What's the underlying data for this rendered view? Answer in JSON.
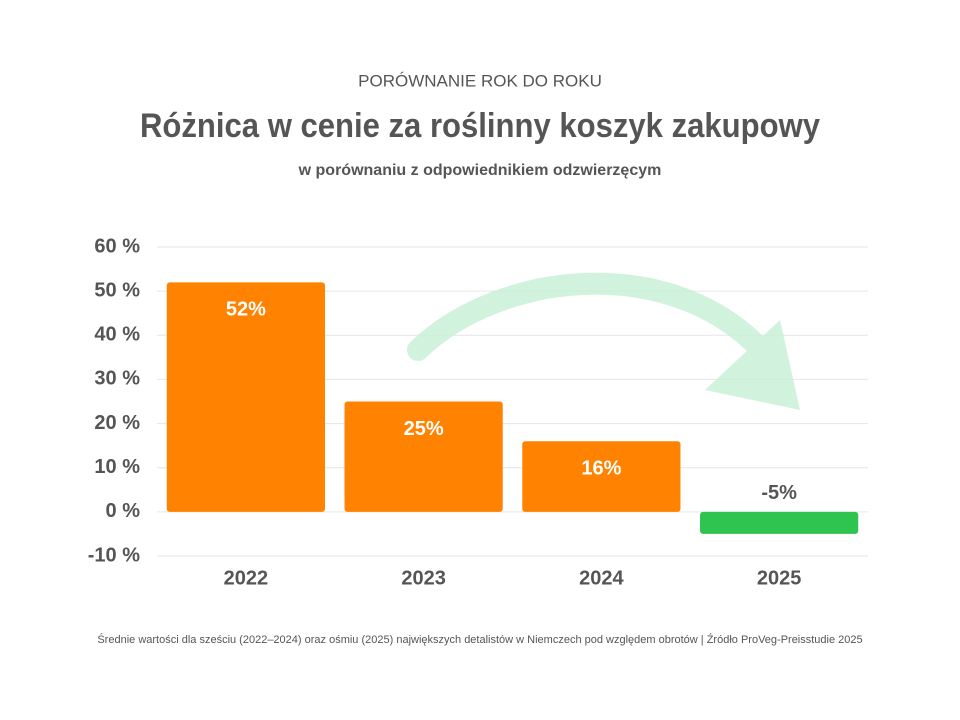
{
  "chart_data": {
    "type": "bar",
    "kicker": "PORÓWNANIE ROK DO ROKU",
    "title": "Różnica w cenie za roślinny koszyk zakupowy",
    "subtitle": "w porównaniu z odpowiednikiem odzwierzęcym",
    "note": "Średnie wartości dla sześciu (2022–2024) oraz ośmiu (2025) największych detalistów w Niemczech pod względem obrotów | Źródło ProVeg-Preisstudie 2025",
    "categories": [
      "2022",
      "2023",
      "2024",
      "2025"
    ],
    "values": [
      52,
      25,
      16,
      -5
    ],
    "value_labels": [
      "52%",
      "25%",
      "16%",
      "-5%"
    ],
    "colors": [
      "#ff8200",
      "#ff8200",
      "#ff8200",
      "#2ec44f"
    ],
    "ylim": [
      -10,
      60
    ],
    "yticks": [
      {
        "value": -10,
        "label": "-10 %"
      },
      {
        "value": 0,
        "label": "0 %"
      },
      {
        "value": 10,
        "label": "10 %"
      },
      {
        "value": 20,
        "label": "20 %"
      },
      {
        "value": 30,
        "label": "30 %"
      },
      {
        "value": 40,
        "label": "40 %"
      },
      {
        "value": 50,
        "label": "50 %"
      },
      {
        "value": 60,
        "label": "60 %"
      }
    ],
    "grid": true
  }
}
